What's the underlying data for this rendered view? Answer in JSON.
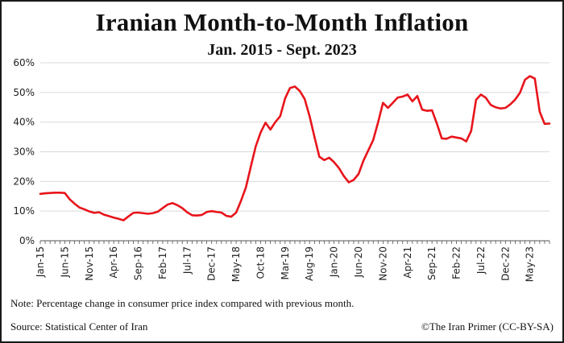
{
  "header": {
    "title": "Iranian Month-to-Month Inflation",
    "subtitle": "Jan. 2015 - Sept. 2023"
  },
  "footer": {
    "note": "Note: Percentage change in consumer price index compared with previous month.",
    "source": "Source: Statistical Center of Iran",
    "credit": "©The Iran Primer (CC-BY-SA)"
  },
  "colors": {
    "line": "#e8141b",
    "grid": "#d9d9d9",
    "axis": "#555555"
  },
  "chart_data": {
    "type": "line",
    "title": "Iranian Month-to-Month Inflation",
    "subtitle": "Jan. 2015 - Sept. 2023",
    "xlabel": "",
    "ylabel": "",
    "ylim": [
      0,
      60
    ],
    "yticks": [
      "0%",
      "10%",
      "20%",
      "30%",
      "40%",
      "50%",
      "60%"
    ],
    "grid": true,
    "legend": "none",
    "x_tick_labels": [
      "Jan-15",
      "Jun-15",
      "Nov-15",
      "Apr-16",
      "Sep-16",
      "Feb-17",
      "Jul-17",
      "Dec-17",
      "May-18",
      "Oct-18",
      "Mar-19",
      "Aug-19",
      "Jan-20",
      "Jun-20",
      "Nov-20",
      "Apr-21",
      "Sep-21",
      "Feb-22",
      "Jul-22",
      "Dec-22",
      "May-23"
    ],
    "x_tick_months": [
      0,
      5,
      10,
      15,
      20,
      25,
      30,
      35,
      40,
      45,
      50,
      55,
      60,
      65,
      70,
      75,
      80,
      85,
      90,
      95,
      100
    ],
    "x_range_months": [
      0,
      104
    ],
    "series": [
      {
        "name": "",
        "values": [
          15.8,
          16.0,
          16.1,
          16.2,
          16.2,
          16.1,
          14.0,
          12.5,
          11.2,
          10.6,
          9.9,
          9.4,
          9.6,
          8.8,
          8.3,
          7.8,
          7.4,
          6.9,
          8.2,
          9.4,
          9.5,
          9.3,
          9.1,
          9.3,
          9.8,
          11.0,
          12.2,
          12.7,
          12.0,
          11.0,
          9.6,
          8.6,
          8.5,
          8.7,
          9.7,
          10.0,
          9.7,
          9.5,
          8.4,
          8.1,
          9.5,
          13.5,
          18.0,
          25.0,
          31.8,
          36.5,
          39.8,
          37.5,
          40.0,
          42.0,
          48.0,
          51.5,
          52.0,
          50.5,
          47.8,
          42.0,
          35.0,
          28.3,
          27.2,
          28.0,
          26.5,
          24.5,
          21.8,
          19.7,
          20.5,
          22.5,
          27.0,
          30.5,
          34.0,
          40.0,
          46.5,
          44.8,
          46.5,
          48.3,
          48.6,
          49.3,
          47.0,
          48.8,
          44.2,
          43.8,
          44.0,
          39.5,
          34.5,
          34.4,
          35.1,
          34.8,
          34.5,
          33.5,
          37.0,
          47.5,
          49.3,
          48.2,
          45.8,
          45.0,
          44.6,
          44.8,
          46.0,
          47.6,
          50.0,
          54.3,
          55.5,
          54.7,
          43.5,
          39.4,
          39.5
        ]
      }
    ]
  }
}
